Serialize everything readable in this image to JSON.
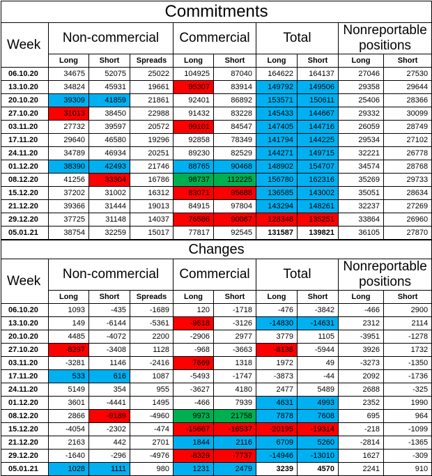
{
  "commitments": {
    "title": "Commitments",
    "headers": {
      "week": "Week",
      "noncommercial": "Non-commercial",
      "commercial": "Commercial",
      "total": "Total",
      "nonreportable": "Nonreportable positions",
      "long": "Long",
      "short": "Short",
      "spreads": "Spreads"
    },
    "rows": [
      {
        "week": "06.10.20",
        "nc_long": "34675",
        "nc_short": "52075",
        "spreads": "25022",
        "c_long": "104925",
        "c_short": "87040",
        "t_long": "164622",
        "t_short": "164137",
        "nr_long": "27046",
        "nr_short": "27530"
      },
      {
        "week": "13.10.20",
        "nc_long": "34824",
        "nc_short": "45931",
        "spreads": "19661",
        "c_long": "95307",
        "c_short": "83914",
        "t_long": "149792",
        "t_short": "149506",
        "nr_long": "29358",
        "nr_short": "29644"
      },
      {
        "week": "20.10.20",
        "nc_long": "39309",
        "nc_short": "41859",
        "spreads": "21861",
        "c_long": "92401",
        "c_short": "86892",
        "t_long": "153571",
        "t_short": "150611",
        "nr_long": "25406",
        "nr_short": "28366"
      },
      {
        "week": "27.10.20",
        "nc_long": "31013",
        "nc_short": "38450",
        "spreads": "22988",
        "c_long": "91432",
        "c_short": "83228",
        "t_long": "145433",
        "t_short": "144667",
        "nr_long": "29332",
        "nr_short": "30099"
      },
      {
        "week": "03.11.20",
        "nc_long": "27732",
        "nc_short": "39597",
        "spreads": "20572",
        "c_long": "99101",
        "c_short": "84547",
        "t_long": "147405",
        "t_short": "144716",
        "nr_long": "26059",
        "nr_short": "28749"
      },
      {
        "week": "17.11.20",
        "nc_long": "29640",
        "nc_short": "46580",
        "spreads": "19296",
        "c_long": "92858",
        "c_short": "78349",
        "t_long": "141794",
        "t_short": "144225",
        "nr_long": "29534",
        "nr_short": "27102"
      },
      {
        "week": "24.11.20",
        "nc_long": "34789",
        "nc_short": "46934",
        "spreads": "20251",
        "c_long": "89230",
        "c_short": "82529",
        "t_long": "144271",
        "t_short": "149715",
        "nr_long": "32221",
        "nr_short": "26778"
      },
      {
        "week": "01.12.20",
        "nc_long": "38390",
        "nc_short": "42493",
        "spreads": "21746",
        "c_long": "88765",
        "c_short": "90468",
        "t_long": "148902",
        "t_short": "154707",
        "nr_long": "34574",
        "nr_short": "28768"
      },
      {
        "week": "08.12.20",
        "nc_long": "41256",
        "nc_short": "33304",
        "spreads": "16786",
        "c_long": "98737",
        "c_short": "112225",
        "t_long": "156780",
        "t_short": "162316",
        "nr_long": "35269",
        "nr_short": "29733"
      },
      {
        "week": "15.12.20",
        "nc_long": "37202",
        "nc_short": "31002",
        "spreads": "16312",
        "c_long": "83071",
        "c_short": "95688",
        "t_long": "136585",
        "t_short": "143002",
        "nr_long": "35051",
        "nr_short": "28634"
      },
      {
        "week": "21.12.20",
        "nc_long": "39366",
        "nc_short": "31444",
        "spreads": "19013",
        "c_long": "84915",
        "c_short": "97804",
        "t_long": "143294",
        "t_short": "148261",
        "nr_long": "32237",
        "nr_short": "27269"
      },
      {
        "week": "29.12.20",
        "nc_long": "37725",
        "nc_short": "31148",
        "spreads": "14037",
        "c_long": "76586",
        "c_short": "90067",
        "t_long": "128348",
        "t_short": "135251",
        "nr_long": "33864",
        "nr_short": "26960"
      },
      {
        "week": "05.01.21",
        "nc_long": "38754",
        "nc_short": "32259",
        "spreads": "15017",
        "c_long": "77817",
        "c_short": "92545",
        "t_long": "131587",
        "t_short": "139821",
        "nr_long": "36105",
        "nr_short": "27870"
      }
    ]
  },
  "changes": {
    "title": "Changes",
    "rows": [
      {
        "week": "06.10.20",
        "nc_long": "1093",
        "nc_short": "-435",
        "spreads": "-1689",
        "c_long": "120",
        "c_short": "-1718",
        "t_long": "-476",
        "t_short": "-3842",
        "nr_long": "-466",
        "nr_short": "2900"
      },
      {
        "week": "13.10.20",
        "nc_long": "149",
        "nc_short": "-6144",
        "spreads": "-5361",
        "c_long": "-9618",
        "c_short": "-3126",
        "t_long": "-14830",
        "t_short": "-14631",
        "nr_long": "2312",
        "nr_short": "2114"
      },
      {
        "week": "20.10.20",
        "nc_long": "4485",
        "nc_short": "-4072",
        "spreads": "2200",
        "c_long": "-2906",
        "c_short": "2977",
        "t_long": "3779",
        "t_short": "1105",
        "nr_long": "-3951",
        "nr_short": "-1278"
      },
      {
        "week": "27.10.20",
        "nc_long": "-8297",
        "nc_short": "-3408",
        "spreads": "1128",
        "c_long": "-968",
        "c_short": "-3663",
        "t_long": "-8138",
        "t_short": "-5944",
        "nr_long": "3926",
        "nr_short": "1732"
      },
      {
        "week": "03.11.20",
        "nc_long": "-3281",
        "nc_short": "1146",
        "spreads": "-2416",
        "c_long": "7669",
        "c_short": "1318",
        "t_long": "1972",
        "t_short": "49",
        "nr_long": "-3273",
        "nr_short": "-1350"
      },
      {
        "week": "17.11.20",
        "nc_long": "533",
        "nc_short": "616",
        "spreads": "1087",
        "c_long": "-5493",
        "c_short": "-1747",
        "t_long": "-3873",
        "t_short": "-44",
        "nr_long": "2092",
        "nr_short": "-1736"
      },
      {
        "week": "24.11.20",
        "nc_long": "5149",
        "nc_short": "354",
        "spreads": "955",
        "c_long": "-3627",
        "c_short": "4180",
        "t_long": "2477",
        "t_short": "5489",
        "nr_long": "2688",
        "nr_short": "-325"
      },
      {
        "week": "01.12.20",
        "nc_long": "3601",
        "nc_short": "-4441",
        "spreads": "1495",
        "c_long": "-466",
        "c_short": "7939",
        "t_long": "4631",
        "t_short": "4993",
        "nr_long": "2352",
        "nr_short": "1990"
      },
      {
        "week": "08.12.20",
        "nc_long": "2866",
        "nc_short": "-9189",
        "spreads": "-4960",
        "c_long": "9973",
        "c_short": "21758",
        "t_long": "7878",
        "t_short": "7608",
        "nr_long": "695",
        "nr_short": "964"
      },
      {
        "week": "15.12.20",
        "nc_long": "-4054",
        "nc_short": "-2302",
        "spreads": "-474",
        "c_long": "-15667",
        "c_short": "-16537",
        "t_long": "-20195",
        "t_short": "-19314",
        "nr_long": "-218",
        "nr_short": "-1099"
      },
      {
        "week": "21.12.20",
        "nc_long": "2163",
        "nc_short": "442",
        "spreads": "2701",
        "c_long": "1844",
        "c_short": "2116",
        "t_long": "6709",
        "t_short": "5260",
        "nr_long": "-2814",
        "nr_short": "-1365"
      },
      {
        "week": "29.12.20",
        "nc_long": "-1640",
        "nc_short": "-296",
        "spreads": "-4976",
        "c_long": "-8329",
        "c_short": "-7737",
        "t_long": "-14946",
        "t_short": "-13010",
        "nr_long": "1627",
        "nr_short": "-309"
      },
      {
        "week": "05.01.21",
        "nc_long": "1028",
        "nc_short": "1111",
        "spreads": "980",
        "c_long": "1231",
        "c_short": "2479",
        "t_long": "3239",
        "t_short": "4570",
        "nr_long": "2241",
        "nr_short": "910"
      }
    ]
  },
  "colors": {
    "red": "#ff0000",
    "blue": "#00b0f0",
    "green": "#00b050"
  }
}
